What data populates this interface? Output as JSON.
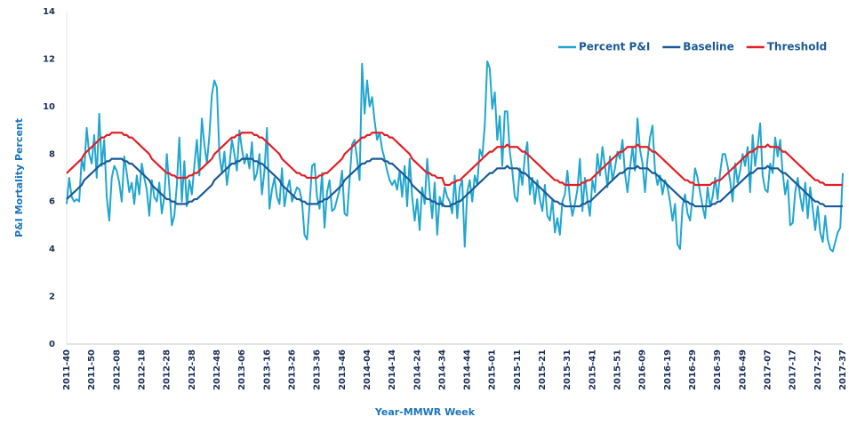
{
  "chart_data": {
    "type": "line",
    "x_label": "Year-MMWR Week",
    "y_label": "P&I Mortality Percent",
    "ylim": [
      0,
      14
    ],
    "yticks": [
      0,
      2,
      4,
      6,
      8,
      10,
      12,
      14
    ],
    "grid": false,
    "legend": "top-right",
    "categories": [
      "2011-40",
      null,
      null,
      null,
      null,
      null,
      null,
      null,
      null,
      null,
      "2011-50",
      null,
      null,
      null,
      null,
      null,
      null,
      null,
      null,
      null,
      "2012-08",
      null,
      null,
      null,
      null,
      null,
      null,
      null,
      null,
      null,
      "2012-18",
      null,
      null,
      null,
      null,
      null,
      null,
      null,
      null,
      null,
      "2012-28",
      null,
      null,
      null,
      null,
      null,
      null,
      null,
      null,
      null,
      "2012-38",
      null,
      null,
      null,
      null,
      null,
      null,
      null,
      null,
      null,
      "2012-48",
      null,
      null,
      null,
      null,
      null,
      null,
      null,
      null,
      null,
      "2013-06",
      null,
      null,
      null,
      null,
      null,
      null,
      null,
      null,
      null,
      "2013-16",
      null,
      null,
      null,
      null,
      null,
      null,
      null,
      null,
      null,
      "2013-26",
      null,
      null,
      null,
      null,
      null,
      null,
      null,
      null,
      null,
      "2013-36",
      null,
      null,
      null,
      null,
      null,
      null,
      null,
      null,
      null,
      "2013-46",
      null,
      null,
      null,
      null,
      null,
      null,
      null,
      null,
      null,
      "2014-04",
      null,
      null,
      null,
      null,
      null,
      null,
      null,
      null,
      null,
      "2014-14",
      null,
      null,
      null,
      null,
      null,
      null,
      null,
      null,
      null,
      "2014-24",
      null,
      null,
      null,
      null,
      null,
      null,
      null,
      null,
      null,
      "2014-34",
      null,
      null,
      null,
      null,
      null,
      null,
      null,
      null,
      null,
      "2014-44",
      null,
      null,
      null,
      null,
      null,
      null,
      null,
      null,
      null,
      "2015-01",
      null,
      null,
      null,
      null,
      null,
      null,
      null,
      null,
      null,
      "2015-11",
      null,
      null,
      null,
      null,
      null,
      null,
      null,
      null,
      null,
      "2015-21",
      null,
      null,
      null,
      null,
      null,
      null,
      null,
      null,
      null,
      "2015-31",
      null,
      null,
      null,
      null,
      null,
      null,
      null,
      null,
      null,
      "2015-41",
      null,
      null,
      null,
      null,
      null,
      null,
      null,
      null,
      null,
      "2015-51",
      null,
      null,
      null,
      null,
      null,
      null,
      null,
      null,
      null,
      "2016-09",
      null,
      null,
      null,
      null,
      null,
      null,
      null,
      null,
      null,
      "2016-19",
      null,
      null,
      null,
      null,
      null,
      null,
      null,
      null,
      null,
      "2016-29",
      null,
      null,
      null,
      null,
      null,
      null,
      null,
      null,
      null,
      "2016-39",
      null,
      null,
      null,
      null,
      null,
      null,
      null,
      null,
      null,
      "2016-49",
      null,
      null,
      null,
      null,
      null,
      null,
      null,
      null,
      null,
      "2017-07",
      null,
      null,
      null,
      null,
      null,
      null,
      null,
      null,
      null,
      "2017-17",
      null,
      null,
      null,
      null,
      null,
      null,
      null,
      null,
      null,
      "2017-27",
      null,
      null,
      null,
      null,
      null,
      null,
      null,
      null,
      null,
      "2017-37"
    ],
    "series": [
      {
        "name": "Percent P&I",
        "color": "#21a6cf",
        "values": [
          5.9,
          7.0,
          6.2,
          6.0,
          6.1,
          6.0,
          7.8,
          7.3,
          9.1,
          8.0,
          7.6,
          8.8,
          7.0,
          9.7,
          7.5,
          8.6,
          6.2,
          5.2,
          7.0,
          7.5,
          7.3,
          6.8,
          6.0,
          7.9,
          7.2,
          6.4,
          6.8,
          5.9,
          7.1,
          6.3,
          7.6,
          7.0,
          6.5,
          5.4,
          6.9,
          6.2,
          6.0,
          6.8,
          5.5,
          6.2,
          8.0,
          6.6,
          5.0,
          5.4,
          6.7,
          8.7,
          6.0,
          7.7,
          5.8,
          6.9,
          6.3,
          7.5,
          8.6,
          7.1,
          9.5,
          8.4,
          7.6,
          8.8,
          10.5,
          11.1,
          10.8,
          8.0,
          7.2,
          8.1,
          6.7,
          7.5,
          8.6,
          8.0,
          7.3,
          9.0,
          8.2,
          7.6,
          8.0,
          7.4,
          8.5,
          6.9,
          7.2,
          8.0,
          6.3,
          7.3,
          9.1,
          5.7,
          6.5,
          7.0,
          6.2,
          5.9,
          7.4,
          5.8,
          6.5,
          6.9,
          6.0,
          6.3,
          6.6,
          6.5,
          6.0,
          4.6,
          4.4,
          5.8,
          7.5,
          7.6,
          6.2,
          5.7,
          7.2,
          4.9,
          6.4,
          6.9,
          5.6,
          5.7,
          6.1,
          6.5,
          7.3,
          5.5,
          5.4,
          6.9,
          8.4,
          8.6,
          7.8,
          6.9,
          11.8,
          9.7,
          11.1,
          10.0,
          10.4,
          9.4,
          8.6,
          8.9,
          8.2,
          7.8,
          7.3,
          6.9,
          6.7,
          6.9,
          6.5,
          7.3,
          6.2,
          7.5,
          5.8,
          7.8,
          6.2,
          5.2,
          6.1,
          4.8,
          6.6,
          5.9,
          7.8,
          6.4,
          5.3,
          6.8,
          4.6,
          6.2,
          5.8,
          6.6,
          6.2,
          6.0,
          5.5,
          7.1,
          5.3,
          6.6,
          6.9,
          4.1,
          6.4,
          6.9,
          6.0,
          7.1,
          6.7,
          8.2,
          7.9,
          9.2,
          11.9,
          11.6,
          9.9,
          10.6,
          8.6,
          9.6,
          7.5,
          9.8,
          9.8,
          8.1,
          7.3,
          6.2,
          6.0,
          7.4,
          6.7,
          7.9,
          8.5,
          6.3,
          7.0,
          5.9,
          6.9,
          6.1,
          5.6,
          6.7,
          5.4,
          5.2,
          6.1,
          4.7,
          5.3,
          4.6,
          6.0,
          6.3,
          7.3,
          6.1,
          5.4,
          5.9,
          6.5,
          7.8,
          5.6,
          7.0,
          6.1,
          5.4,
          6.9,
          6.4,
          8.0,
          7.1,
          8.3,
          7.5,
          6.6,
          7.9,
          6.9,
          7.4,
          8.1,
          7.8,
          8.6,
          7.2,
          6.4,
          7.4,
          8.3,
          7.3,
          9.5,
          8.2,
          7.6,
          6.4,
          7.8,
          8.7,
          9.2,
          7.3,
          6.7,
          7.1,
          6.3,
          6.9,
          6.6,
          6.0,
          5.2,
          5.9,
          4.2,
          4.0,
          5.8,
          6.3,
          5.5,
          5.2,
          6.2,
          7.4,
          7.0,
          6.4,
          5.8,
          5.3,
          6.6,
          5.8,
          6.2,
          7.0,
          6.1,
          7.2,
          8.0,
          8.0,
          7.5,
          6.9,
          6.0,
          7.6,
          6.8,
          7.3,
          8.0,
          7.5,
          8.3,
          6.4,
          8.8,
          7.5,
          8.3,
          9.3,
          7.1,
          6.5,
          6.4,
          7.6,
          7.2,
          8.7,
          7.9,
          8.6,
          7.2,
          6.3,
          6.9,
          5.0,
          5.1,
          6.4,
          7.0,
          6.2,
          5.6,
          6.8,
          5.3,
          6.6,
          5.7,
          4.8,
          5.8,
          4.7,
          4.3,
          5.4,
          4.4,
          4.0,
          3.9,
          4.3,
          4.7,
          4.9,
          7.2
        ]
      },
      {
        "name": "Baseline",
        "color": "#1b5a96",
        "values": [
          6.1,
          6.2,
          6.3,
          6.4,
          6.5,
          6.6,
          6.7,
          6.9,
          7.0,
          7.1,
          7.2,
          7.3,
          7.4,
          7.5,
          7.6,
          7.6,
          7.7,
          7.7,
          7.8,
          7.8,
          7.8,
          7.8,
          7.8,
          7.7,
          7.7,
          7.6,
          7.6,
          7.5,
          7.4,
          7.3,
          7.2,
          7.1,
          7.0,
          6.9,
          6.7,
          6.6,
          6.5,
          6.4,
          6.3,
          6.2,
          6.1,
          6.1,
          6.0,
          6.0,
          5.9,
          5.9,
          5.9,
          5.9,
          5.9,
          6.0,
          6.0,
          6.1,
          6.1,
          6.2,
          6.3,
          6.4,
          6.5,
          6.6,
          6.7,
          6.9,
          7.0,
          7.1,
          7.2,
          7.3,
          7.4,
          7.5,
          7.6,
          7.6,
          7.7,
          7.7,
          7.8,
          7.8,
          7.8,
          7.8,
          7.8,
          7.7,
          7.7,
          7.6,
          7.6,
          7.5,
          7.4,
          7.3,
          7.2,
          7.1,
          7.0,
          6.9,
          6.7,
          6.6,
          6.5,
          6.4,
          6.3,
          6.2,
          6.1,
          6.1,
          6.0,
          6.0,
          5.9,
          5.9,
          5.9,
          5.9,
          5.9,
          6.0,
          6.0,
          6.1,
          6.1,
          6.2,
          6.3,
          6.4,
          6.5,
          6.6,
          6.7,
          6.9,
          7.0,
          7.1,
          7.2,
          7.3,
          7.4,
          7.5,
          7.6,
          7.6,
          7.7,
          7.7,
          7.8,
          7.8,
          7.8,
          7.8,
          7.8,
          7.7,
          7.7,
          7.6,
          7.6,
          7.5,
          7.4,
          7.3,
          7.2,
          7.1,
          7.0,
          6.9,
          6.7,
          6.6,
          6.5,
          6.4,
          6.3,
          6.2,
          6.1,
          6.1,
          6.0,
          6.0,
          5.9,
          5.9,
          5.9,
          5.8,
          5.8,
          5.8,
          5.9,
          5.9,
          6.0,
          6.0,
          6.1,
          6.2,
          6.3,
          6.4,
          6.5,
          6.6,
          6.7,
          6.8,
          6.9,
          7.0,
          7.1,
          7.2,
          7.2,
          7.3,
          7.4,
          7.4,
          7.4,
          7.4,
          7.5,
          7.4,
          7.4,
          7.4,
          7.4,
          7.3,
          7.2,
          7.2,
          7.1,
          7.0,
          6.9,
          6.8,
          6.7,
          6.6,
          6.5,
          6.4,
          6.3,
          6.2,
          6.1,
          6.0,
          6.0,
          5.9,
          5.9,
          5.8,
          5.8,
          5.8,
          5.8,
          5.8,
          5.8,
          5.8,
          5.9,
          5.9,
          6.0,
          6.0,
          6.1,
          6.2,
          6.3,
          6.4,
          6.5,
          6.6,
          6.7,
          6.8,
          6.9,
          7.0,
          7.1,
          7.2,
          7.2,
          7.3,
          7.4,
          7.4,
          7.4,
          7.4,
          7.5,
          7.4,
          7.4,
          7.4,
          7.4,
          7.3,
          7.2,
          7.2,
          7.1,
          7.0,
          6.9,
          6.8,
          6.7,
          6.6,
          6.5,
          6.4,
          6.3,
          6.2,
          6.1,
          6.0,
          6.0,
          5.9,
          5.9,
          5.8,
          5.8,
          5.8,
          5.8,
          5.8,
          5.8,
          5.8,
          5.9,
          5.9,
          6.0,
          6.0,
          6.1,
          6.2,
          6.3,
          6.4,
          6.5,
          6.6,
          6.7,
          6.8,
          6.9,
          7.0,
          7.1,
          7.2,
          7.2,
          7.3,
          7.4,
          7.4,
          7.4,
          7.4,
          7.5,
          7.4,
          7.4,
          7.4,
          7.4,
          7.3,
          7.2,
          7.2,
          7.1,
          7.0,
          6.9,
          6.8,
          6.7,
          6.6,
          6.5,
          6.4,
          6.3,
          6.2,
          6.1,
          6.0,
          6.0,
          5.9,
          5.9,
          5.8,
          5.8,
          5.8,
          5.8,
          5.8,
          5.8,
          5.8,
          5.8
        ]
      },
      {
        "name": "Threshold",
        "color": "#e41e26",
        "values": [
          7.2,
          7.3,
          7.4,
          7.5,
          7.6,
          7.7,
          7.8,
          8.0,
          8.1,
          8.2,
          8.3,
          8.4,
          8.5,
          8.6,
          8.7,
          8.7,
          8.8,
          8.8,
          8.9,
          8.9,
          8.9,
          8.9,
          8.9,
          8.8,
          8.8,
          8.7,
          8.7,
          8.6,
          8.5,
          8.4,
          8.3,
          8.2,
          8.1,
          8.0,
          7.8,
          7.7,
          7.6,
          7.5,
          7.4,
          7.3,
          7.2,
          7.2,
          7.1,
          7.1,
          7.0,
          7.0,
          7.0,
          7.0,
          7.0,
          7.1,
          7.1,
          7.2,
          7.2,
          7.3,
          7.4,
          7.5,
          7.6,
          7.7,
          7.8,
          8.0,
          8.1,
          8.2,
          8.3,
          8.4,
          8.5,
          8.6,
          8.7,
          8.7,
          8.8,
          8.8,
          8.9,
          8.9,
          8.9,
          8.9,
          8.9,
          8.8,
          8.8,
          8.7,
          8.7,
          8.6,
          8.5,
          8.4,
          8.3,
          8.2,
          8.1,
          8.0,
          7.8,
          7.7,
          7.6,
          7.5,
          7.4,
          7.3,
          7.2,
          7.2,
          7.1,
          7.1,
          7.0,
          7.0,
          7.0,
          7.0,
          7.0,
          7.1,
          7.1,
          7.2,
          7.2,
          7.3,
          7.4,
          7.5,
          7.6,
          7.7,
          7.8,
          8.0,
          8.1,
          8.2,
          8.3,
          8.4,
          8.5,
          8.6,
          8.7,
          8.7,
          8.8,
          8.8,
          8.9,
          8.9,
          8.9,
          8.9,
          8.9,
          8.8,
          8.8,
          8.7,
          8.7,
          8.6,
          8.5,
          8.4,
          8.3,
          8.2,
          8.1,
          8.0,
          7.8,
          7.7,
          7.6,
          7.5,
          7.4,
          7.3,
          7.2,
          7.2,
          7.1,
          7.1,
          7.0,
          7.0,
          7.0,
          6.7,
          6.7,
          6.7,
          6.8,
          6.8,
          6.9,
          6.9,
          7.0,
          7.1,
          7.2,
          7.3,
          7.4,
          7.5,
          7.6,
          7.7,
          7.8,
          7.9,
          8.0,
          8.1,
          8.1,
          8.2,
          8.3,
          8.3,
          8.3,
          8.3,
          8.4,
          8.3,
          8.3,
          8.3,
          8.3,
          8.2,
          8.1,
          8.1,
          8.0,
          7.9,
          7.8,
          7.7,
          7.6,
          7.5,
          7.4,
          7.3,
          7.2,
          7.1,
          7.0,
          6.9,
          6.9,
          6.8,
          6.8,
          6.7,
          6.7,
          6.7,
          6.7,
          6.7,
          6.7,
          6.7,
          6.8,
          6.8,
          6.9,
          6.9,
          7.0,
          7.1,
          7.2,
          7.3,
          7.4,
          7.5,
          7.6,
          7.7,
          7.8,
          7.9,
          8.0,
          8.1,
          8.1,
          8.2,
          8.3,
          8.3,
          8.3,
          8.3,
          8.4,
          8.3,
          8.3,
          8.3,
          8.3,
          8.2,
          8.1,
          8.1,
          8.0,
          7.9,
          7.8,
          7.7,
          7.6,
          7.5,
          7.4,
          7.3,
          7.2,
          7.1,
          7.0,
          6.9,
          6.9,
          6.8,
          6.8,
          6.7,
          6.7,
          6.7,
          6.7,
          6.7,
          6.7,
          6.7,
          6.8,
          6.8,
          6.9,
          6.9,
          7.0,
          7.1,
          7.2,
          7.3,
          7.4,
          7.5,
          7.6,
          7.7,
          7.8,
          7.9,
          8.0,
          8.1,
          8.1,
          8.2,
          8.3,
          8.3,
          8.3,
          8.3,
          8.4,
          8.3,
          8.3,
          8.3,
          8.3,
          8.2,
          8.1,
          8.1,
          8.0,
          7.9,
          7.8,
          7.7,
          7.6,
          7.5,
          7.4,
          7.3,
          7.2,
          7.1,
          7.0,
          6.9,
          6.9,
          6.8,
          6.8,
          6.7,
          6.7,
          6.7,
          6.7,
          6.7,
          6.7,
          6.7,
          6.7
        ]
      }
    ]
  }
}
